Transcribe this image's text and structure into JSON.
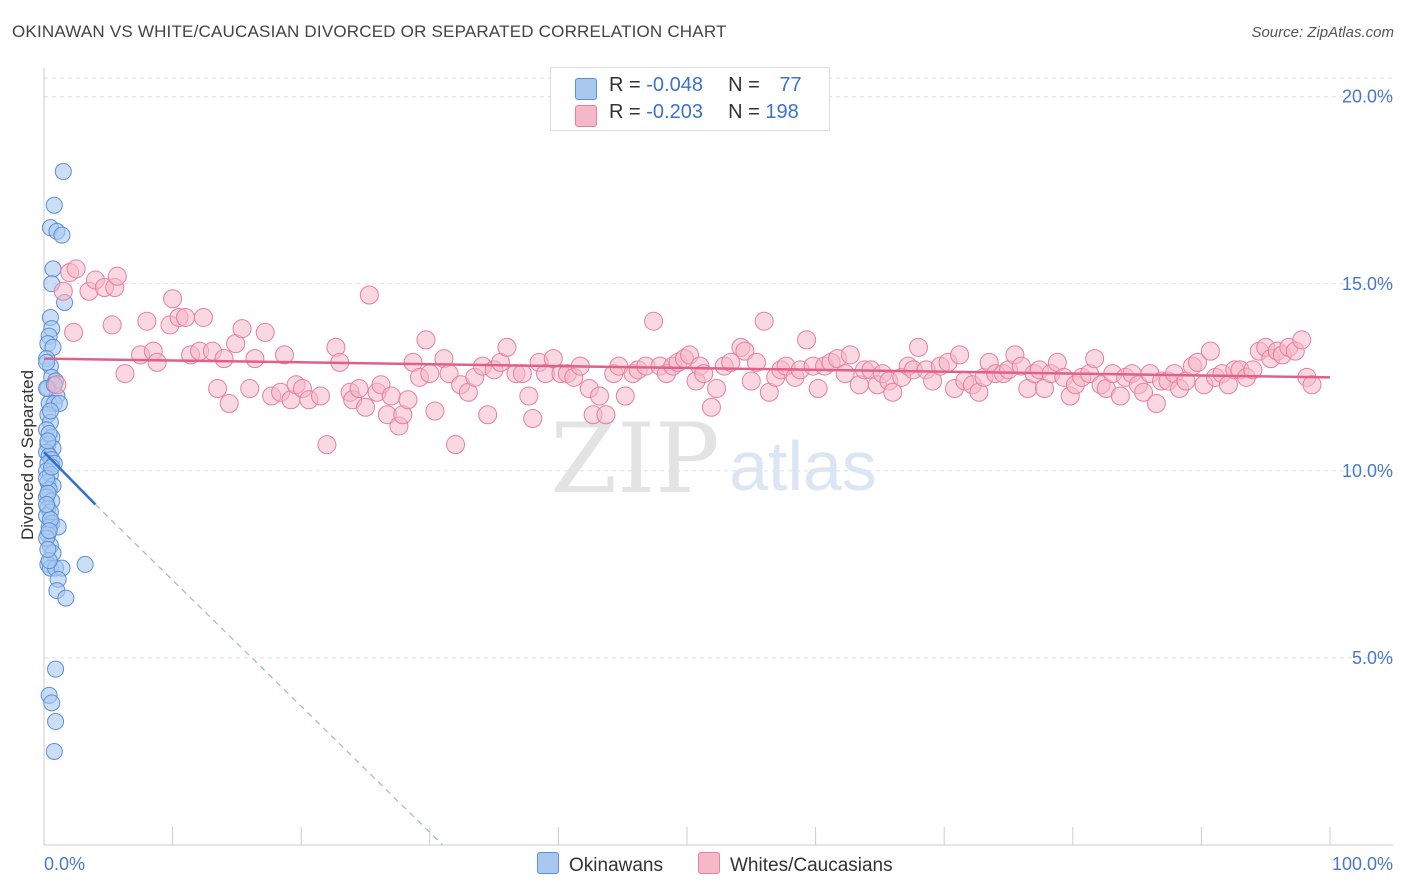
{
  "header": {
    "title": "OKINAWAN VS WHITE/CAUCASIAN DIVORCED OR SEPARATED CORRELATION CHART",
    "source": "Source: ZipAtlas.com"
  },
  "watermark": {
    "zip": "ZIP",
    "atlas": "atlas"
  },
  "legend_top": [
    {
      "r_label": "R = ",
      "r_value": "-0.048",
      "n_label": "N = ",
      "n_value": "77",
      "color": "#a8c8f0"
    },
    {
      "r_label": "R = ",
      "r_value": "-0.203",
      "n_label": "N = ",
      "n_value": "198",
      "color": "#f5b8c9"
    }
  ],
  "legend_bottom": [
    {
      "label": "Okinawans",
      "color": "#a8c8f0"
    },
    {
      "label": "Whites/Caucasians",
      "color": "#f5b8c9"
    }
  ],
  "colors": {
    "blue_fill": "#a8c8f0",
    "blue_stroke": "#5b8fd6",
    "blue_line": "#2f6fd0",
    "pink_fill": "#f5b8c9",
    "pink_stroke": "#e57f9f",
    "pink_line": "#e0608a",
    "tick_label": "#4a78c8",
    "grid": "#dddddd"
  },
  "chart_data": {
    "type": "scatter",
    "title": "OKINAWAN VS WHITE/CAUCASIAN DIVORCED OR SEPARATED CORRELATION CHART",
    "xlabel": "",
    "ylabel": "Divorced or Separated",
    "xlim": [
      0,
      100
    ],
    "ylim": [
      0,
      20.5
    ],
    "x_tick_labels": [
      "0.0%",
      "100.0%"
    ],
    "y_ticks": [
      5,
      10,
      15,
      20
    ],
    "y_tick_labels": [
      "5.0%",
      "10.0%",
      "15.0%",
      "20.0%"
    ],
    "grid": true,
    "legend_position": "bottom",
    "series": [
      {
        "name": "Okinawans",
        "R": -0.048,
        "N": 77,
        "trend": {
          "x0": 0,
          "y0": 10.5,
          "x1": 4,
          "y1": 9.1,
          "dashed_to_x": 31,
          "dashed_to_y": 0
        },
        "points": [
          [
            1.5,
            18.0
          ],
          [
            0.8,
            17.1
          ],
          [
            0.5,
            16.5
          ],
          [
            1.0,
            16.4
          ],
          [
            1.4,
            16.3
          ],
          [
            0.7,
            15.4
          ],
          [
            0.6,
            15.0
          ],
          [
            1.6,
            14.5
          ],
          [
            0.5,
            14.1
          ],
          [
            0.6,
            13.8
          ],
          [
            0.4,
            13.6
          ],
          [
            0.3,
            13.4
          ],
          [
            0.7,
            13.3
          ],
          [
            0.2,
            13.0
          ],
          [
            0.5,
            12.8
          ],
          [
            0.6,
            12.5
          ],
          [
            0.9,
            12.4
          ],
          [
            0.3,
            12.2
          ],
          [
            1.0,
            12.0
          ],
          [
            0.4,
            11.8
          ],
          [
            0.8,
            11.8
          ],
          [
            1.2,
            11.8
          ],
          [
            0.3,
            11.5
          ],
          [
            0.5,
            11.3
          ],
          [
            0.2,
            11.1
          ],
          [
            0.6,
            10.9
          ],
          [
            0.3,
            10.7
          ],
          [
            0.7,
            10.6
          ],
          [
            0.2,
            10.5
          ],
          [
            0.4,
            10.4
          ],
          [
            0.6,
            10.3
          ],
          [
            0.3,
            10.2
          ],
          [
            0.8,
            10.2
          ],
          [
            0.2,
            10.0
          ],
          [
            0.5,
            9.9
          ],
          [
            0.3,
            9.7
          ],
          [
            0.7,
            9.6
          ],
          [
            0.4,
            9.5
          ],
          [
            0.2,
            9.3
          ],
          [
            0.6,
            9.2
          ],
          [
            0.3,
            9.0
          ],
          [
            0.5,
            8.9
          ],
          [
            0.2,
            8.8
          ],
          [
            0.6,
            8.6
          ],
          [
            0.4,
            8.5
          ],
          [
            1.1,
            8.5
          ],
          [
            0.3,
            8.3
          ],
          [
            0.5,
            8.0
          ],
          [
            0.7,
            7.8
          ],
          [
            0.3,
            7.5
          ],
          [
            0.5,
            7.4
          ],
          [
            0.9,
            7.4
          ],
          [
            1.4,
            7.4
          ],
          [
            3.2,
            7.5
          ],
          [
            1.1,
            7.1
          ],
          [
            1.0,
            6.8
          ],
          [
            1.7,
            6.6
          ],
          [
            0.9,
            4.7
          ],
          [
            0.4,
            4.0
          ],
          [
            0.6,
            3.8
          ],
          [
            0.9,
            3.3
          ],
          [
            0.8,
            2.5
          ],
          [
            0.2,
            12.9
          ],
          [
            0.2,
            12.2
          ],
          [
            0.4,
            11.0
          ],
          [
            0.2,
            9.8
          ],
          [
            0.3,
            9.4
          ],
          [
            0.5,
            8.7
          ],
          [
            0.2,
            8.2
          ],
          [
            0.4,
            7.6
          ],
          [
            0.8,
            12.3
          ],
          [
            0.3,
            10.8
          ],
          [
            0.6,
            10.1
          ],
          [
            0.2,
            9.1
          ],
          [
            0.4,
            8.4
          ],
          [
            0.3,
            7.9
          ],
          [
            0.5,
            11.6
          ]
        ]
      },
      {
        "name": "Whites/Caucasians",
        "R": -0.203,
        "N": 198,
        "trend": {
          "x0": 0,
          "y0": 13.0,
          "x1": 100,
          "y1": 12.5
        },
        "points": [
          [
            1.0,
            12.3
          ],
          [
            1.5,
            14.8
          ],
          [
            2.0,
            15.3
          ],
          [
            2.5,
            15.4
          ],
          [
            3.5,
            14.8
          ],
          [
            4.0,
            15.1
          ],
          [
            4.7,
            14.9
          ],
          [
            5.5,
            14.9
          ],
          [
            2.3,
            13.7
          ],
          [
            5.3,
            13.9
          ],
          [
            5.7,
            15.2
          ],
          [
            6.3,
            12.6
          ],
          [
            7.5,
            13.1
          ],
          [
            8.0,
            14.0
          ],
          [
            8.5,
            13.2
          ],
          [
            8.8,
            12.9
          ],
          [
            10.0,
            14.6
          ],
          [
            9.8,
            13.9
          ],
          [
            10.5,
            14.1
          ],
          [
            11.0,
            14.1
          ],
          [
            11.4,
            13.1
          ],
          [
            12.1,
            13.2
          ],
          [
            12.4,
            14.1
          ],
          [
            13.1,
            13.2
          ],
          [
            13.5,
            12.2
          ],
          [
            14.0,
            13.0
          ],
          [
            14.4,
            11.8
          ],
          [
            14.9,
            13.4
          ],
          [
            15.4,
            13.8
          ],
          [
            16.0,
            12.2
          ],
          [
            16.4,
            13.0
          ],
          [
            17.2,
            13.7
          ],
          [
            17.7,
            12.0
          ],
          [
            18.4,
            12.1
          ],
          [
            18.7,
            13.1
          ],
          [
            19.2,
            11.9
          ],
          [
            19.6,
            12.3
          ],
          [
            20.1,
            12.2
          ],
          [
            20.6,
            11.9
          ],
          [
            21.5,
            12.0
          ],
          [
            22.0,
            10.7
          ],
          [
            22.7,
            13.3
          ],
          [
            23.0,
            12.9
          ],
          [
            23.8,
            12.1
          ],
          [
            24.0,
            11.9
          ],
          [
            24.5,
            12.2
          ],
          [
            25.0,
            11.7
          ],
          [
            25.3,
            14.7
          ],
          [
            25.9,
            12.1
          ],
          [
            26.2,
            12.3
          ],
          [
            26.7,
            11.5
          ],
          [
            27.0,
            12.0
          ],
          [
            27.6,
            11.2
          ],
          [
            27.9,
            11.5
          ],
          [
            28.3,
            11.9
          ],
          [
            28.7,
            12.9
          ],
          [
            29.2,
            12.5
          ],
          [
            29.7,
            13.5
          ],
          [
            30.0,
            12.6
          ],
          [
            30.4,
            11.6
          ],
          [
            31.1,
            13.0
          ],
          [
            31.5,
            12.6
          ],
          [
            32.0,
            10.7
          ],
          [
            32.4,
            12.3
          ],
          [
            33.0,
            12.1
          ],
          [
            33.5,
            12.5
          ],
          [
            34.1,
            12.8
          ],
          [
            34.5,
            11.5
          ],
          [
            35.0,
            12.7
          ],
          [
            35.5,
            12.9
          ],
          [
            36.0,
            13.3
          ],
          [
            36.7,
            12.6
          ],
          [
            37.2,
            12.6
          ],
          [
            37.7,
            12.0
          ],
          [
            38.0,
            11.4
          ],
          [
            38.5,
            12.9
          ],
          [
            39.0,
            12.6
          ],
          [
            39.6,
            13.0
          ],
          [
            40.2,
            12.6
          ],
          [
            40.7,
            12.6
          ],
          [
            41.2,
            12.5
          ],
          [
            41.7,
            12.8
          ],
          [
            42.4,
            12.2
          ],
          [
            42.7,
            11.5
          ],
          [
            43.2,
            12.0
          ],
          [
            43.7,
            11.5
          ],
          [
            44.3,
            12.6
          ],
          [
            44.7,
            12.8
          ],
          [
            45.2,
            12.0
          ],
          [
            45.8,
            12.6
          ],
          [
            46.2,
            12.7
          ],
          [
            46.8,
            12.8
          ],
          [
            47.4,
            14.0
          ],
          [
            47.9,
            12.8
          ],
          [
            48.4,
            12.6
          ],
          [
            48.9,
            12.8
          ],
          [
            49.3,
            12.9
          ],
          [
            49.8,
            13.0
          ],
          [
            50.2,
            13.1
          ],
          [
            50.7,
            12.4
          ],
          [
            51.0,
            12.8
          ],
          [
            51.3,
            12.6
          ],
          [
            51.9,
            11.7
          ],
          [
            52.3,
            12.2
          ],
          [
            52.9,
            12.8
          ],
          [
            53.4,
            12.9
          ],
          [
            54.2,
            13.3
          ],
          [
            54.5,
            13.2
          ],
          [
            55.0,
            12.4
          ],
          [
            55.4,
            12.9
          ],
          [
            56.0,
            14.0
          ],
          [
            56.4,
            12.1
          ],
          [
            56.9,
            12.5
          ],
          [
            57.3,
            12.7
          ],
          [
            57.7,
            12.8
          ],
          [
            58.4,
            12.5
          ],
          [
            58.8,
            12.7
          ],
          [
            59.3,
            13.5
          ],
          [
            59.8,
            12.8
          ],
          [
            60.2,
            12.2
          ],
          [
            60.7,
            12.8
          ],
          [
            61.2,
            12.9
          ],
          [
            61.7,
            13.0
          ],
          [
            62.3,
            12.6
          ],
          [
            62.7,
            13.1
          ],
          [
            63.4,
            12.3
          ],
          [
            63.8,
            12.7
          ],
          [
            64.3,
            12.7
          ],
          [
            64.8,
            12.3
          ],
          [
            65.2,
            12.6
          ],
          [
            65.7,
            12.4
          ],
          [
            66.0,
            12.1
          ],
          [
            66.7,
            12.5
          ],
          [
            67.2,
            12.8
          ],
          [
            67.6,
            12.7
          ],
          [
            68.0,
            13.3
          ],
          [
            68.6,
            12.7
          ],
          [
            69.1,
            12.4
          ],
          [
            69.7,
            12.8
          ],
          [
            70.3,
            12.9
          ],
          [
            70.8,
            12.2
          ],
          [
            71.2,
            13.1
          ],
          [
            71.6,
            12.4
          ],
          [
            72.2,
            12.3
          ],
          [
            72.7,
            12.1
          ],
          [
            73.1,
            12.5
          ],
          [
            73.5,
            12.9
          ],
          [
            74.0,
            12.6
          ],
          [
            74.6,
            12.6
          ],
          [
            75.0,
            12.7
          ],
          [
            75.5,
            13.1
          ],
          [
            76.0,
            12.8
          ],
          [
            76.5,
            12.2
          ],
          [
            77.0,
            12.6
          ],
          [
            77.4,
            12.7
          ],
          [
            77.8,
            12.2
          ],
          [
            78.3,
            12.6
          ],
          [
            78.8,
            12.9
          ],
          [
            79.3,
            12.5
          ],
          [
            79.8,
            12.0
          ],
          [
            80.2,
            12.3
          ],
          [
            80.7,
            12.5
          ],
          [
            81.3,
            12.6
          ],
          [
            81.7,
            13.0
          ],
          [
            82.2,
            12.3
          ],
          [
            82.6,
            12.2
          ],
          [
            83.1,
            12.6
          ],
          [
            83.7,
            12.0
          ],
          [
            84.1,
            12.5
          ],
          [
            84.6,
            12.6
          ],
          [
            85.1,
            12.3
          ],
          [
            85.5,
            12.1
          ],
          [
            86.0,
            12.6
          ],
          [
            86.5,
            11.8
          ],
          [
            86.9,
            12.4
          ],
          [
            87.4,
            12.4
          ],
          [
            87.9,
            12.6
          ],
          [
            88.3,
            12.2
          ],
          [
            88.8,
            12.4
          ],
          [
            89.3,
            12.8
          ],
          [
            89.7,
            12.9
          ],
          [
            90.2,
            12.3
          ],
          [
            90.7,
            13.2
          ],
          [
            91.1,
            12.5
          ],
          [
            91.6,
            12.6
          ],
          [
            92.1,
            12.3
          ],
          [
            92.6,
            12.7
          ],
          [
            93.0,
            12.7
          ],
          [
            93.5,
            12.5
          ],
          [
            94.0,
            12.7
          ],
          [
            94.5,
            13.2
          ],
          [
            95.0,
            13.3
          ],
          [
            95.4,
            13.0
          ],
          [
            95.9,
            13.2
          ],
          [
            96.3,
            13.1
          ],
          [
            96.8,
            13.3
          ],
          [
            97.3,
            13.2
          ],
          [
            97.8,
            13.5
          ],
          [
            98.2,
            12.5
          ],
          [
            98.6,
            12.3
          ]
        ]
      }
    ]
  }
}
